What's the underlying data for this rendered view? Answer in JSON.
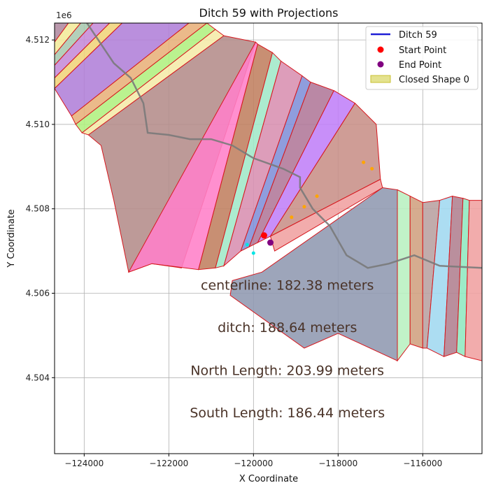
{
  "chart_data": {
    "type": "scatter",
    "title": "Ditch 59 with Projections",
    "xlabel": "X Coordinate",
    "ylabel": "Y Coordinate",
    "y_offset_label": "1e6",
    "xlim": [
      -124700,
      -114600
    ],
    "ylim": [
      4502200,
      4512400
    ],
    "x_ticks": [
      -124000,
      -122000,
      -120000,
      -118000,
      -116000
    ],
    "x_tick_labels": [
      "−124000",
      "−122000",
      "−120000",
      "−118000",
      "−116000"
    ],
    "y_ticks": [
      4504000,
      4506000,
      4508000,
      4510000,
      4512000
    ],
    "y_tick_labels": [
      "4.504",
      "4.506",
      "4.508",
      "4.510",
      "4.512"
    ],
    "grid": true,
    "legend_position": "top-right",
    "legend": [
      {
        "label": "Ditch 59",
        "kind": "line",
        "color": "#1f1fd6"
      },
      {
        "label": "Start Point",
        "kind": "marker",
        "color": "#ff0000"
      },
      {
        "label": "End Point",
        "kind": "marker",
        "color": "#800080"
      },
      {
        "label": "Closed Shape 0",
        "kind": "patch",
        "color": "#d8d560"
      }
    ],
    "start_point": {
      "x": -119750,
      "y": 4507370
    },
    "end_point": {
      "x": -119600,
      "y": 4507200
    },
    "projection_points": [
      {
        "x": -117400,
        "y": 4509100,
        "color": "#ffa500"
      },
      {
        "x": -117200,
        "y": 4508950,
        "color": "#ffa500"
      },
      {
        "x": -119100,
        "y": 4507800,
        "color": "#ffa500"
      },
      {
        "x": -118800,
        "y": 4508050,
        "color": "#ffa500"
      },
      {
        "x": -118500,
        "y": 4508300,
        "color": "#ffa500"
      },
      {
        "x": -120000,
        "y": 4506950,
        "color": "#00e5e5"
      },
      {
        "x": -120150,
        "y": 4507150,
        "color": "#00e5e5"
      }
    ],
    "centerline": [
      [
        -124000,
        4512500
      ],
      [
        -123300,
        4511450
      ],
      [
        -122900,
        4511100
      ],
      [
        -122600,
        4510500
      ],
      [
        -122500,
        4509800
      ],
      [
        -122000,
        4509750
      ],
      [
        -121500,
        4509650
      ],
      [
        -121000,
        4509650
      ],
      [
        -120500,
        4509500
      ],
      [
        -120000,
        4509200
      ],
      [
        -119300,
        4508950
      ],
      [
        -118900,
        4508750
      ],
      [
        -118900,
        4508500
      ],
      [
        -118600,
        4508000
      ],
      [
        -118200,
        4507600
      ],
      [
        -117800,
        4506900
      ],
      [
        -117300,
        4506600
      ],
      [
        -116800,
        4506700
      ],
      [
        -116200,
        4506900
      ],
      [
        -115600,
        4506650
      ],
      [
        -114600,
        4506600
      ]
    ],
    "annotations": [
      {
        "text": "centerline: 182.38 meters",
        "x": -119200,
        "y": 4506200
      },
      {
        "text": "ditch: 188.64 meters",
        "x": -119200,
        "y": 4505200
      },
      {
        "text": "North Length: 203.99 meters",
        "x": -119200,
        "y": 4504180
      },
      {
        "text": "South Length: 186.44 meters",
        "x": -119200,
        "y": 4503180
      }
    ],
    "shapes": [
      {
        "color": "#b08aa0",
        "points": [
          [
            -124700,
            4512500
          ],
          [
            -124300,
            4512500
          ],
          [
            -124700,
            4511950
          ]
        ]
      },
      {
        "color": "#f3eb9a",
        "points": [
          [
            -124300,
            4512500
          ],
          [
            -124000,
            4512500
          ],
          [
            -124700,
            4511650
          ],
          [
            -124700,
            4511950
          ]
        ]
      },
      {
        "color": "#a9c9b0",
        "points": [
          [
            -124000,
            4512500
          ],
          [
            -123700,
            4512500
          ],
          [
            -124700,
            4511400
          ],
          [
            -124700,
            4511650
          ]
        ]
      },
      {
        "color": "#c58bd8",
        "points": [
          [
            -123700,
            4512500
          ],
          [
            -123300,
            4512500
          ],
          [
            -124700,
            4511100
          ],
          [
            -124700,
            4511400
          ]
        ]
      },
      {
        "color": "#f0d47a",
        "points": [
          [
            -123300,
            4512500
          ],
          [
            -123000,
            4512500
          ],
          [
            -124700,
            4510850
          ],
          [
            -124700,
            4511100
          ]
        ]
      },
      {
        "color": "#b080d8",
        "points": [
          [
            -123000,
            4512500
          ],
          [
            -121400,
            4512500
          ],
          [
            -124300,
            4510200
          ],
          [
            -124700,
            4510850
          ]
        ]
      },
      {
        "color": "#e8b07a",
        "points": [
          [
            -121400,
            4512500
          ],
          [
            -121100,
            4512400
          ],
          [
            -124200,
            4510000
          ],
          [
            -124300,
            4510200
          ]
        ]
      },
      {
        "color": "#b0f080",
        "points": [
          [
            -121100,
            4512400
          ],
          [
            -120900,
            4512250
          ],
          [
            -124050,
            4509800
          ],
          [
            -124200,
            4510000
          ]
        ]
      },
      {
        "color": "#f5eaa8",
        "points": [
          [
            -120900,
            4512250
          ],
          [
            -120700,
            4512100
          ],
          [
            -123900,
            4509750
          ],
          [
            -124050,
            4509800
          ]
        ]
      },
      {
        "color": "#b48c8a",
        "points": [
          [
            -120700,
            4512100
          ],
          [
            -119950,
            4511950
          ],
          [
            -121700,
            4506600
          ],
          [
            -122400,
            4506700
          ],
          [
            -122950,
            4506500
          ],
          [
            -123300,
            4508200
          ],
          [
            -123600,
            4509500
          ],
          [
            -123900,
            4509750
          ]
        ]
      },
      {
        "color": "#ff80c8",
        "points": [
          [
            -119950,
            4511950
          ],
          [
            -119900,
            4511900
          ],
          [
            -121300,
            4506560
          ],
          [
            -122400,
            4506700
          ],
          [
            -122950,
            4506500
          ]
        ]
      },
      {
        "color": "#c08060",
        "points": [
          [
            -119900,
            4511900
          ],
          [
            -119550,
            4511700
          ],
          [
            -120900,
            4506600
          ],
          [
            -121300,
            4506560
          ]
        ]
      },
      {
        "color": "#a0e8c8",
        "points": [
          [
            -119550,
            4511700
          ],
          [
            -119350,
            4511500
          ],
          [
            -120700,
            4506650
          ],
          [
            -120900,
            4506600
          ]
        ]
      },
      {
        "color": "#d890b0",
        "points": [
          [
            -119350,
            4511500
          ],
          [
            -118850,
            4511150
          ],
          [
            -120300,
            4507000
          ],
          [
            -120700,
            4506650
          ]
        ]
      },
      {
        "color": "#8090d8",
        "points": [
          [
            -118850,
            4511150
          ],
          [
            -118650,
            4511000
          ],
          [
            -120100,
            4507100
          ],
          [
            -120300,
            4507000
          ]
        ]
      },
      {
        "color": "#b07898",
        "points": [
          [
            -118650,
            4511000
          ],
          [
            -118100,
            4510800
          ],
          [
            -119900,
            4507200
          ],
          [
            -120100,
            4507100
          ]
        ]
      },
      {
        "color": "#c080f8",
        "points": [
          [
            -118100,
            4510800
          ],
          [
            -117600,
            4510500
          ],
          [
            -119600,
            4507350
          ],
          [
            -119900,
            4507200
          ]
        ]
      },
      {
        "color": "#c89088",
        "points": [
          [
            -117600,
            4510500
          ],
          [
            -117100,
            4510000
          ],
          [
            -117000,
            4508700
          ],
          [
            -119600,
            4507350
          ]
        ]
      },
      {
        "color": "#f0a0a0",
        "points": [
          [
            -117000,
            4508700
          ],
          [
            -116950,
            4508500
          ],
          [
            -119500,
            4507000
          ],
          [
            -119600,
            4507350
          ]
        ]
      },
      {
        "color": "#9098b0",
        "points": [
          [
            -116950,
            4508500
          ],
          [
            -116600,
            4508450
          ],
          [
            -116600,
            4504400
          ],
          [
            -118000,
            4505050
          ],
          [
            -118800,
            4504700
          ],
          [
            -120550,
            4505950
          ],
          [
            -120500,
            4506300
          ],
          [
            -119800,
            4506500
          ]
        ]
      },
      {
        "color": "#b8f0c0",
        "points": [
          [
            -116600,
            4508450
          ],
          [
            -116300,
            4508300
          ],
          [
            -116300,
            4504800
          ],
          [
            -116600,
            4504400
          ]
        ]
      },
      {
        "color": "#d0a080",
        "points": [
          [
            -116300,
            4508300
          ],
          [
            -116000,
            4508150
          ],
          [
            -116000,
            4504700
          ],
          [
            -116300,
            4504800
          ]
        ]
      },
      {
        "color": "#b8a0a0",
        "points": [
          [
            -116000,
            4508150
          ],
          [
            -115600,
            4508200
          ],
          [
            -115900,
            4504700
          ],
          [
            -116000,
            4504700
          ]
        ]
      },
      {
        "color": "#a0d8f0",
        "points": [
          [
            -115600,
            4508200
          ],
          [
            -115300,
            4508300
          ],
          [
            -115500,
            4504500
          ],
          [
            -115900,
            4504700
          ]
        ]
      },
      {
        "color": "#b08090",
        "points": [
          [
            -115300,
            4508300
          ],
          [
            -115050,
            4508250
          ],
          [
            -115200,
            4504600
          ],
          [
            -115500,
            4504500
          ]
        ]
      },
      {
        "color": "#90e8c0",
        "points": [
          [
            -115050,
            4508250
          ],
          [
            -114900,
            4508200
          ],
          [
            -115000,
            4504500
          ],
          [
            -115200,
            4504600
          ]
        ]
      },
      {
        "color": "#f0a0a0",
        "points": [
          [
            -114900,
            4508200
          ],
          [
            -114600,
            4508200
          ],
          [
            -114600,
            4504400
          ],
          [
            -115000,
            4504500
          ]
        ]
      }
    ]
  }
}
